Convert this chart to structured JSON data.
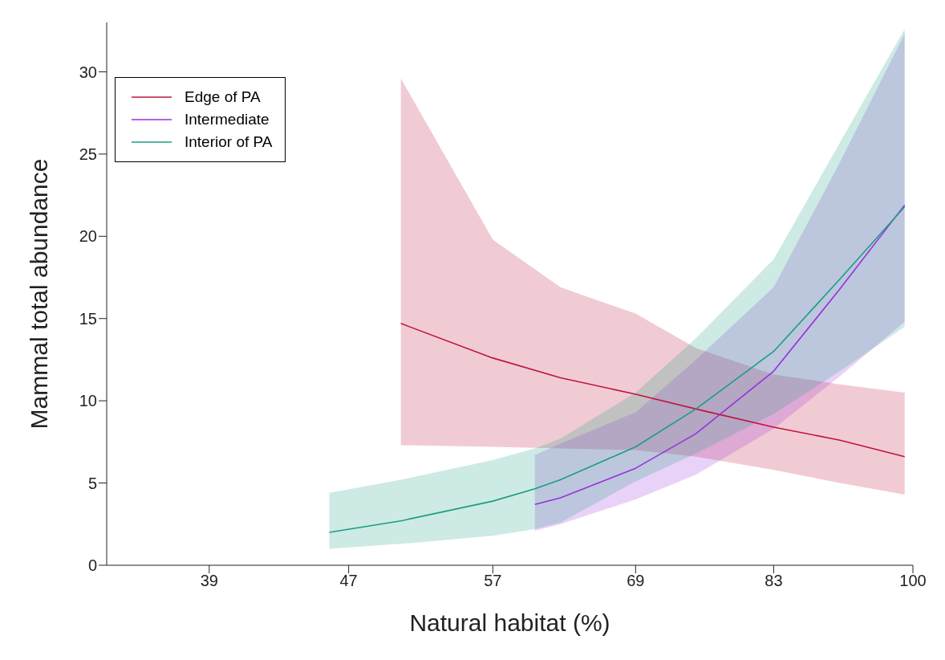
{
  "chart_data": {
    "type": "line",
    "xlabel": "Natural habitat (%)",
    "ylabel": "Mammal total abundance",
    "log": "x",
    "xlim": [
      34,
      100
    ],
    "xticks": [
      39,
      47,
      57,
      69,
      83,
      100
    ],
    "ylim": [
      0,
      33
    ],
    "yticks": [
      0,
      5,
      10,
      15,
      20,
      25,
      30
    ],
    "grid": false,
    "legend": "top left",
    "marker": "none",
    "line_style": "solid",
    "series": [
      {
        "name": "Edge of PA",
        "color": "#c0143c",
        "x": [
          50.4,
          57,
          62.4,
          69,
          74.8,
          83,
          90.7,
          98.9
        ],
        "values": [
          14.7,
          12.6,
          11.4,
          10.4,
          9.5,
          8.4,
          7.6,
          6.6
        ],
        "lower": [
          7.3,
          7.2,
          7.1,
          7.0,
          6.6,
          5.8,
          5.0,
          4.3
        ],
        "upper": [
          29.6,
          19.8,
          16.9,
          15.3,
          13.2,
          11.6,
          11.0,
          10.5
        ]
      },
      {
        "name": "Intermediate",
        "color": "#9b30d9",
        "x": [
          60.3,
          62.4,
          69,
          74.8,
          83,
          90.7,
          98.9
        ],
        "values": [
          3.7,
          4.1,
          5.9,
          8.0,
          11.8,
          16.8,
          21.9
        ],
        "lower": [
          2.1,
          2.5,
          4.0,
          5.5,
          8.3,
          11.5,
          14.8
        ],
        "upper": [
          6.7,
          7.4,
          9.3,
          12.5,
          16.9,
          24.5,
          32.3
        ]
      },
      {
        "name": "Interior of PA",
        "color": "#1a9e84",
        "x": [
          45.8,
          50.4,
          57,
          60.3,
          62.4,
          69,
          74.8,
          83,
          90.7,
          98.9
        ],
        "values": [
          2.0,
          2.7,
          3.9,
          4.65,
          5.2,
          7.2,
          9.5,
          13.0,
          17.4,
          21.8
        ],
        "lower": [
          1.0,
          1.3,
          1.8,
          2.2,
          2.6,
          5.1,
          6.8,
          9.2,
          11.8,
          14.5
        ],
        "upper": [
          4.4,
          5.2,
          6.4,
          7.1,
          7.7,
          10.5,
          13.8,
          18.6,
          25.7,
          32.6
        ]
      }
    ]
  }
}
